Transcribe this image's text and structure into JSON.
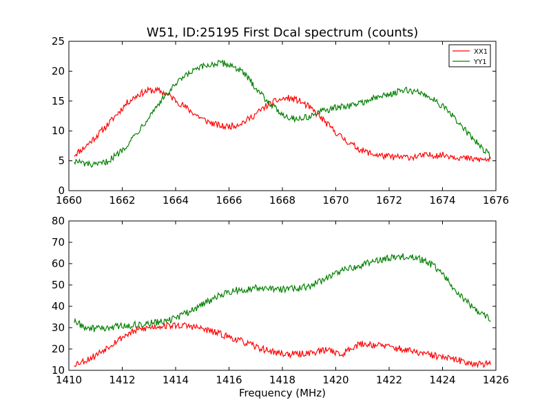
{
  "chart_data": [
    {
      "type": "line",
      "title": "W51, ID:25195 First Dcal spectrum (counts)",
      "xlabel": "",
      "ylabel": "",
      "xlim": [
        1660,
        1676
      ],
      "ylim": [
        0,
        25
      ],
      "xticks": [
        "1660",
        "1662",
        "1664",
        "1666",
        "1668",
        "1670",
        "1672",
        "1674",
        "1676"
      ],
      "yticks": [
        "0",
        "5",
        "10",
        "15",
        "20",
        "25"
      ],
      "legend": {
        "position": "top-right",
        "entries": [
          "XX1",
          "YY1"
        ]
      },
      "series": [
        {
          "name": "XX1",
          "color": "#ff0000",
          "x": [
            1660.2,
            1660.6,
            1661.0,
            1661.4,
            1661.8,
            1662.2,
            1662.6,
            1663.0,
            1663.4,
            1663.8,
            1664.2,
            1664.6,
            1665.0,
            1665.4,
            1665.8,
            1666.2,
            1666.6,
            1667.0,
            1667.4,
            1667.8,
            1668.2,
            1668.6,
            1669.0,
            1669.4,
            1669.8,
            1670.2,
            1670.6,
            1671.0,
            1671.4,
            1671.8,
            1672.2,
            1672.6,
            1673.0,
            1673.4,
            1673.8,
            1674.2,
            1674.6,
            1675.0,
            1675.4,
            1675.8
          ],
          "y": [
            6.0,
            7.3,
            9.0,
            10.8,
            12.8,
            14.8,
            16.1,
            16.8,
            16.7,
            15.8,
            14.5,
            13.2,
            12.0,
            11.2,
            10.7,
            10.9,
            11.6,
            12.8,
            14.2,
            15.1,
            15.5,
            15.1,
            14.0,
            12.4,
            10.6,
            9.0,
            7.7,
            6.7,
            6.1,
            5.8,
            5.6,
            5.6,
            5.7,
            5.9,
            6.0,
            5.9,
            5.6,
            5.3,
            5.2,
            5.2
          ]
        },
        {
          "name": "YY1",
          "color": "#008000",
          "x": [
            1660.2,
            1660.6,
            1661.0,
            1661.4,
            1661.8,
            1662.2,
            1662.6,
            1663.0,
            1663.4,
            1663.8,
            1664.2,
            1664.6,
            1665.0,
            1665.4,
            1665.8,
            1666.2,
            1666.6,
            1667.0,
            1667.4,
            1667.8,
            1668.2,
            1668.6,
            1669.0,
            1669.4,
            1669.8,
            1670.2,
            1670.6,
            1671.0,
            1671.4,
            1671.8,
            1672.2,
            1672.6,
            1673.0,
            1673.4,
            1673.8,
            1674.2,
            1674.6,
            1675.0,
            1675.4,
            1675.8
          ],
          "y": [
            5.0,
            4.5,
            4.2,
            4.8,
            6.0,
            7.8,
            10.0,
            12.4,
            14.8,
            16.8,
            18.6,
            19.9,
            20.7,
            21.2,
            21.3,
            20.8,
            19.4,
            17.3,
            15.2,
            13.5,
            12.3,
            12.0,
            12.4,
            13.1,
            13.7,
            14.0,
            14.3,
            14.8,
            15.4,
            15.9,
            16.4,
            16.8,
            16.6,
            16.0,
            14.9,
            13.3,
            11.4,
            9.3,
            7.5,
            5.8
          ]
        }
      ]
    },
    {
      "type": "line",
      "title": "",
      "xlabel": "Frequency (MHz)",
      "ylabel": "",
      "xlim": [
        1410,
        1426
      ],
      "ylim": [
        10,
        80
      ],
      "xticks": [
        "1410",
        "1412",
        "1414",
        "1416",
        "1418",
        "1420",
        "1422",
        "1424",
        "1426"
      ],
      "yticks": [
        "10",
        "20",
        "30",
        "40",
        "50",
        "60",
        "70",
        "80"
      ],
      "series": [
        {
          "color": "#ff0000",
          "x": [
            1410.2,
            1410.6,
            1411.0,
            1411.4,
            1411.8,
            1412.2,
            1412.6,
            1413.0,
            1413.4,
            1413.8,
            1414.2,
            1414.6,
            1415.0,
            1415.4,
            1415.8,
            1416.2,
            1416.6,
            1417.0,
            1417.4,
            1417.8,
            1418.2,
            1418.6,
            1419.0,
            1419.4,
            1419.8,
            1420.2,
            1420.6,
            1421.0,
            1421.4,
            1421.8,
            1422.2,
            1422.6,
            1423.0,
            1423.4,
            1423.8,
            1424.2,
            1424.6,
            1425.0,
            1425.4,
            1425.8
          ],
          "y": [
            13,
            14.5,
            17,
            20.5,
            24,
            27,
            29,
            30,
            30.8,
            31,
            31,
            30.6,
            29.5,
            28,
            26.5,
            24.8,
            23,
            21,
            19.5,
            18.2,
            17.6,
            17.5,
            18.2,
            19,
            19.8,
            17,
            21,
            22.4,
            22,
            21.5,
            20.5,
            19.6,
            18.5,
            17.5,
            16.6,
            15.6,
            14.6,
            13.6,
            13,
            12.8
          ]
        },
        {
          "color": "#008000",
          "x": [
            1410.2,
            1410.6,
            1411.0,
            1411.4,
            1411.8,
            1412.2,
            1412.6,
            1413.0,
            1413.4,
            1413.8,
            1414.2,
            1414.6,
            1415.0,
            1415.4,
            1415.8,
            1416.2,
            1416.6,
            1417.0,
            1417.4,
            1417.8,
            1418.2,
            1418.6,
            1419.0,
            1419.4,
            1419.8,
            1420.2,
            1420.6,
            1421.0,
            1421.4,
            1421.8,
            1422.2,
            1422.6,
            1423.0,
            1423.4,
            1423.8,
            1424.2,
            1424.6,
            1425.0,
            1425.4,
            1425.8
          ],
          "y": [
            33,
            30,
            29.5,
            30,
            30.5,
            31,
            31.5,
            32,
            32.5,
            33.5,
            35.5,
            38,
            41,
            43.5,
            46,
            47.5,
            48,
            48.5,
            48.5,
            48,
            48,
            48.5,
            49.5,
            51.5,
            54,
            56.5,
            58,
            59.5,
            61,
            62,
            63,
            63.5,
            63,
            61,
            57.5,
            52,
            46,
            41,
            37,
            34
          ]
        }
      ]
    }
  ]
}
